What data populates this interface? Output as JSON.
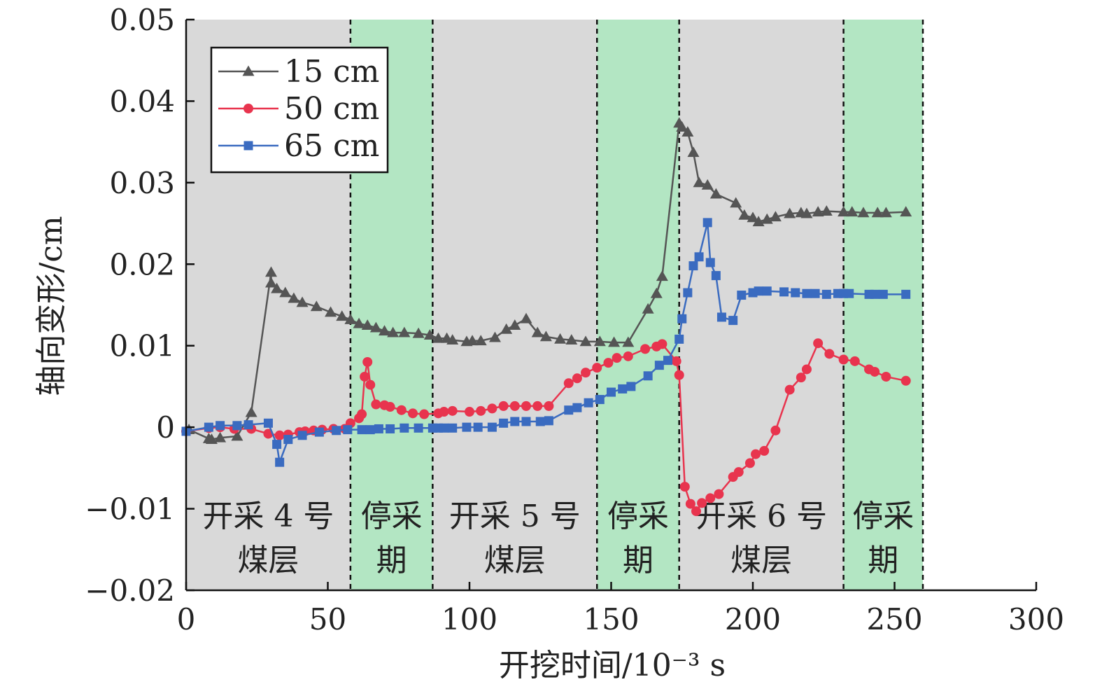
{
  "chart_data": {
    "type": "line",
    "xlabel": "开挖时间/10⁻³ s",
    "ylabel": "轴向变形/cm",
    "xlim": [
      0,
      300
    ],
    "ylim": [
      -0.02,
      0.05
    ],
    "x_ticks": [
      "0",
      "50",
      "100",
      "150",
      "200",
      "250",
      "300"
    ],
    "y_ticks": [
      "−0.02",
      "−0.01",
      "0",
      "0.01",
      "0.02",
      "0.03",
      "0.04",
      "0.05"
    ],
    "legend_position": "top-left",
    "phases": [
      {
        "label_line1": "开采 4 号",
        "label_line2": "煤层",
        "start": 0,
        "end": 58,
        "color": "#d9d9d9"
      },
      {
        "label_line1": "停采",
        "label_line2": "期",
        "start": 58,
        "end": 87,
        "color": "#b3e6c3"
      },
      {
        "label_line1": "开采 5 号",
        "label_line2": "煤层",
        "start": 87,
        "end": 145,
        "color": "#d9d9d9"
      },
      {
        "label_line1": "停采",
        "label_line2": "期",
        "start": 145,
        "end": 174,
        "color": "#b3e6c3"
      },
      {
        "label_line1": "开采 6 号",
        "label_line2": "煤层",
        "start": 174,
        "end": 232,
        "color": "#d9d9d9"
      },
      {
        "label_line1": "停采",
        "label_line2": "期",
        "start": 232,
        "end": 260,
        "color": "#b3e6c3"
      }
    ],
    "series": [
      {
        "name": "15 cm",
        "color": "#555555",
        "marker": "triangle",
        "x": [
          1,
          8,
          9,
          12,
          18,
          23,
          30,
          30,
          32,
          35,
          38,
          41,
          46,
          51,
          55,
          58,
          61,
          64,
          67,
          70,
          73,
          77,
          82,
          86,
          89,
          92,
          94,
          99,
          101,
          104,
          109,
          113,
          116,
          120,
          124,
          127,
          132,
          136,
          141,
          146,
          151,
          156,
          163,
          166,
          168,
          174,
          175,
          177,
          179,
          181,
          184,
          187,
          194,
          197,
          200,
          202,
          205,
          208,
          213,
          217,
          219,
          223,
          226,
          232,
          235,
          239,
          244,
          247,
          254
        ],
        "y": [
          -0.0003,
          -0.0014,
          -0.0015,
          -0.0013,
          -0.0011,
          0.0018,
          0.019,
          0.0177,
          0.017,
          0.0165,
          0.0158,
          0.0153,
          0.0148,
          0.0141,
          0.0136,
          0.0132,
          0.0127,
          0.0125,
          0.0122,
          0.0118,
          0.0116,
          0.0116,
          0.0115,
          0.0113,
          0.0109,
          0.0109,
          0.0107,
          0.0105,
          0.0106,
          0.0106,
          0.011,
          0.012,
          0.0125,
          0.0133,
          0.0116,
          0.0111,
          0.0108,
          0.0107,
          0.0105,
          0.0105,
          0.0104,
          0.0104,
          0.0145,
          0.0164,
          0.0185,
          0.0373,
          0.0368,
          0.0362,
          0.0337,
          0.03,
          0.0297,
          0.0286,
          0.0275,
          0.026,
          0.0257,
          0.0252,
          0.0255,
          0.0258,
          0.0262,
          0.0263,
          0.0262,
          0.0264,
          0.0265,
          0.0264,
          0.0264,
          0.0263,
          0.0263,
          0.0263,
          0.0264
        ]
      },
      {
        "name": "50 cm",
        "color": "#e8344e",
        "marker": "circle",
        "x": [
          0,
          8,
          12,
          17,
          23,
          29,
          33,
          36,
          40,
          42,
          45,
          48,
          52,
          56,
          58,
          61,
          62,
          63,
          64,
          65,
          67,
          70,
          72,
          76,
          80,
          84,
          89,
          91,
          94,
          100,
          104,
          108,
          112,
          116,
          120,
          124,
          128,
          135,
          138,
          141,
          145,
          149,
          152,
          156,
          162,
          166,
          168,
          173,
          174,
          176,
          178,
          180,
          182,
          185,
          188,
          193,
          195,
          199,
          201,
          204,
          208,
          213,
          217,
          219,
          223,
          227,
          232,
          236,
          241,
          243,
          247,
          254
        ],
        "y": [
          -0.0005,
          -0.0001,
          0.0,
          -0.0002,
          -0.0002,
          -0.0008,
          -0.001,
          -0.0009,
          -0.0006,
          -0.0005,
          -0.0004,
          -0.0003,
          -0.0002,
          -0.0002,
          0.0005,
          0.0011,
          0.0016,
          0.0062,
          0.008,
          0.0052,
          0.0028,
          0.0027,
          0.0025,
          0.0021,
          0.0017,
          0.0016,
          0.0017,
          0.0019,
          0.002,
          0.0019,
          0.002,
          0.0023,
          0.0026,
          0.0026,
          0.0026,
          0.0026,
          0.0026,
          0.0054,
          0.006,
          0.0067,
          0.0073,
          0.0079,
          0.0085,
          0.0087,
          0.0096,
          0.0099,
          0.0102,
          0.0081,
          0.0064,
          -0.0073,
          -0.0094,
          -0.0103,
          -0.0093,
          -0.0087,
          -0.0082,
          -0.0061,
          -0.0055,
          -0.0044,
          -0.0033,
          -0.0029,
          -0.0004,
          0.0046,
          0.0061,
          0.0071,
          0.0103,
          0.009,
          0.0083,
          0.0081,
          0.0071,
          0.0068,
          0.0062,
          0.0057
        ]
      },
      {
        "name": "65 cm",
        "color": "#3a6bc0",
        "marker": "square",
        "x": [
          0,
          8,
          12,
          18,
          22,
          29,
          32,
          33,
          36,
          41,
          47,
          53,
          57,
          62,
          65,
          68,
          72,
          77,
          82,
          87,
          89,
          91,
          94,
          99,
          103,
          108,
          112,
          116,
          120,
          125,
          128,
          135,
          138,
          142,
          146,
          150,
          154,
          157,
          163,
          167,
          170,
          174,
          175,
          177,
          179,
          181,
          184,
          185,
          187,
          189,
          193,
          196,
          200,
          202,
          205,
          211,
          215,
          219,
          222,
          226,
          230,
          232,
          234,
          241,
          243,
          246,
          254
        ],
        "y": [
          -0.0005,
          0.0,
          0.0002,
          0.0002,
          0.0003,
          0.0005,
          -0.0021,
          -0.0043,
          -0.0015,
          -0.001,
          -0.0006,
          -0.0004,
          -0.0003,
          -0.0003,
          -0.0003,
          -0.0002,
          -0.0002,
          -0.0001,
          -0.0001,
          -0.0001,
          -0.0001,
          -0.0001,
          -0.0001,
          0.0,
          0.0,
          0.0,
          0.0005,
          0.0007,
          0.0007,
          0.0007,
          0.0008,
          0.0021,
          0.0024,
          0.003,
          0.0034,
          0.0043,
          0.0047,
          0.005,
          0.0063,
          0.0076,
          0.0082,
          0.0108,
          0.0133,
          0.0165,
          0.0198,
          0.0209,
          0.0251,
          0.0202,
          0.0186,
          0.0135,
          0.0131,
          0.0162,
          0.0165,
          0.0167,
          0.0167,
          0.0166,
          0.0165,
          0.0164,
          0.0164,
          0.0163,
          0.0164,
          0.0164,
          0.0164,
          0.0163,
          0.0163,
          0.0163,
          0.0163
        ]
      }
    ]
  }
}
